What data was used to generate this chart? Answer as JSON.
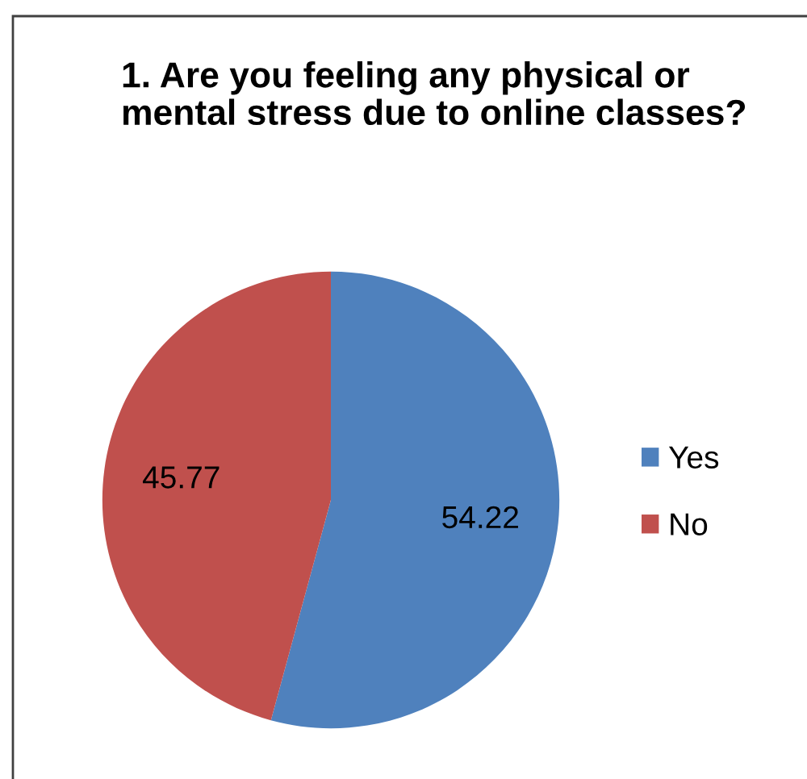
{
  "chart_data": {
    "type": "pie",
    "title": "1. Are you feeling any physical or mental stress due to online classes?",
    "categories": [
      "Yes",
      "No"
    ],
    "values": [
      54.22,
      45.77
    ],
    "colors": [
      "#4f81bd",
      "#c0504d"
    ],
    "data_labels": true,
    "legend": "right"
  }
}
